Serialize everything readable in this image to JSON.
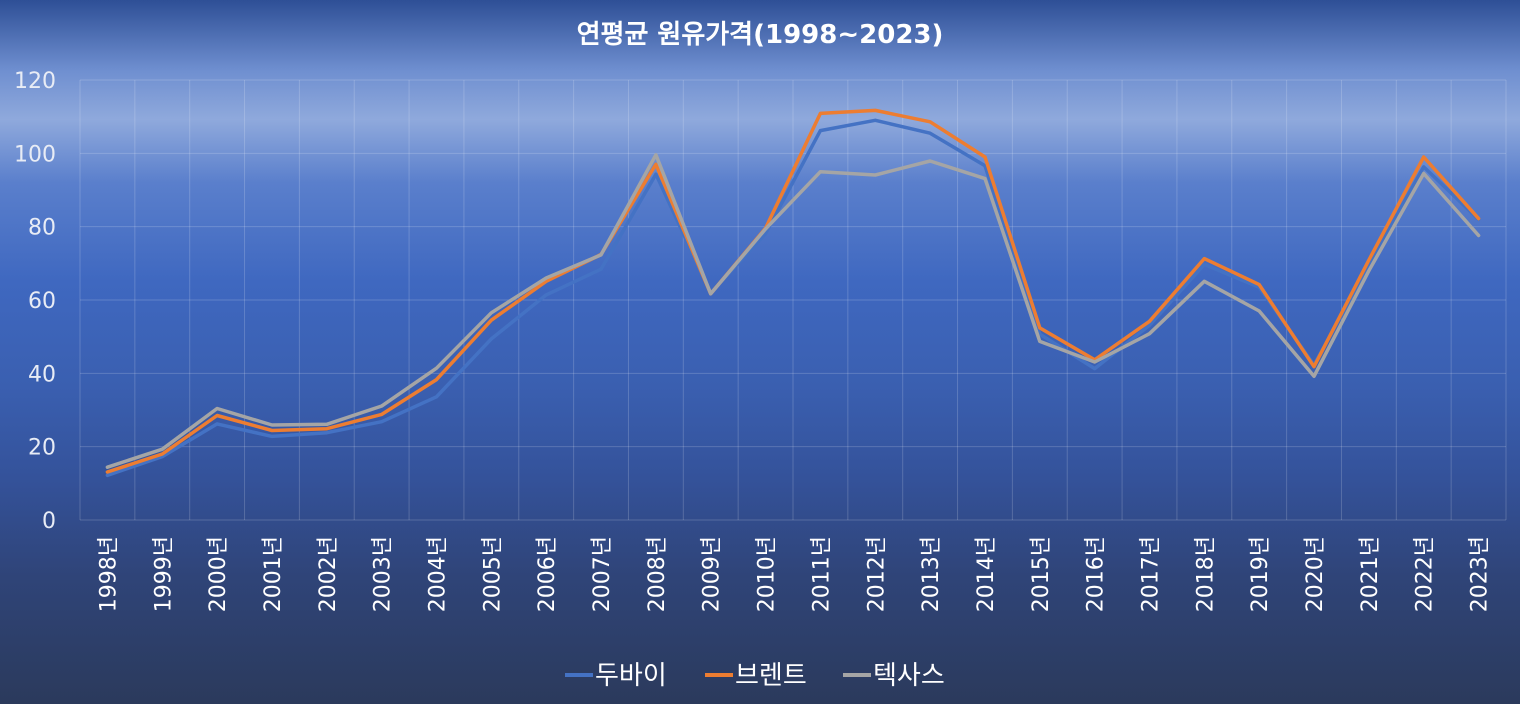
{
  "chart_data": {
    "type": "line",
    "title": "연평균 원유가격(1998~2023)",
    "xlabel": "",
    "ylabel": "",
    "ylim": [
      0,
      120
    ],
    "yticks": [
      0,
      20,
      40,
      60,
      80,
      100,
      120
    ],
    "grid": true,
    "legend_position": "bottom",
    "categories": [
      "1998년",
      "1999년",
      "2000년",
      "2001년",
      "2002년",
      "2003년",
      "2004년",
      "2005년",
      "2006년",
      "2007년",
      "2008년",
      "2009년",
      "2010년",
      "2011년",
      "2012년",
      "2013년",
      "2014년",
      "2015년",
      "2016년",
      "2017년",
      "2018년",
      "2019년",
      "2020년",
      "2021년",
      "2022년",
      "2023년"
    ],
    "series": [
      {
        "name": "두바이",
        "color": "#4472c4",
        "values": [
          12.2,
          17.3,
          26.2,
          22.8,
          23.8,
          26.8,
          33.6,
          49.4,
          61.4,
          68.4,
          94.3,
          61.9,
          78.1,
          106.2,
          109.0,
          105.5,
          96.6,
          50.7,
          41.3,
          53.1,
          69.7,
          63.5,
          42.3,
          69.4,
          96.3,
          82.0
        ]
      },
      {
        "name": "브렌트",
        "color": "#ed7d31",
        "values": [
          13.1,
          18.0,
          28.5,
          24.4,
          24.9,
          28.8,
          38.3,
          54.5,
          65.1,
          72.4,
          97.0,
          61.7,
          79.6,
          110.9,
          111.7,
          108.6,
          99.0,
          52.4,
          43.7,
          54.2,
          71.3,
          64.2,
          41.8,
          70.9,
          99.0,
          82.2
        ]
      },
      {
        "name": "텍사스",
        "color": "#a5a5a5",
        "values": [
          14.4,
          19.3,
          30.4,
          25.9,
          26.1,
          31.1,
          41.4,
          56.5,
          66.0,
          72.3,
          99.6,
          61.7,
          79.4,
          95.0,
          94.1,
          97.9,
          93.1,
          48.7,
          43.1,
          50.8,
          65.1,
          57.0,
          39.2,
          68.0,
          94.5,
          77.6
        ]
      }
    ]
  }
}
